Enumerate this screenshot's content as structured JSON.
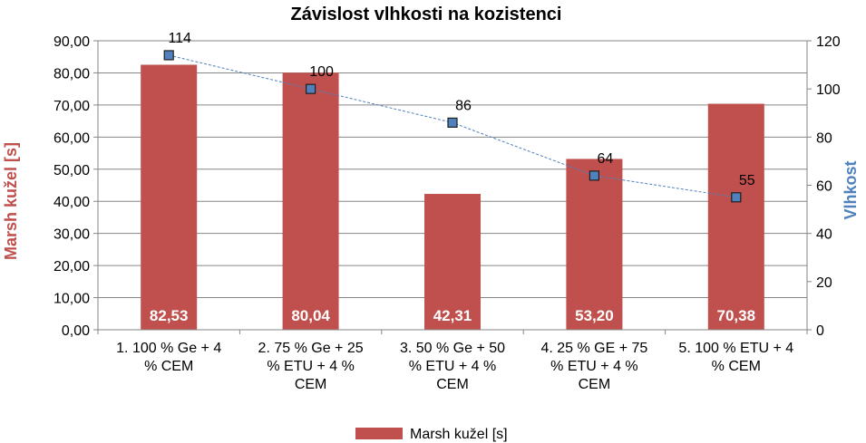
{
  "chart_data": {
    "type": "bar",
    "title": "Závislost vlhkosti na kozistenci",
    "categories": [
      [
        "1. 100 % Ge + 4",
        "% CEM"
      ],
      [
        "2. 75 %  Ge + 25",
        "% ETU + 4 %",
        "CEM"
      ],
      [
        "3. 50 % Ge + 50",
        "% ETU + 4 %",
        "CEM"
      ],
      [
        "4. 25 % GE + 75",
        "% ETU + 4 %",
        "CEM"
      ],
      [
        "5. 100 % ETU + 4",
        "% CEM"
      ]
    ],
    "series": [
      {
        "name": "Marsh kužel [s]",
        "type": "bar",
        "axis": "left",
        "values": [
          82.53,
          80.04,
          42.31,
          53.2,
          70.38
        ],
        "labels": [
          "82,53",
          "80,04",
          "42,31",
          "53,20",
          "70,38"
        ],
        "color": "#c0504d"
      },
      {
        "name": "Vlhkost",
        "type": "line",
        "axis": "right",
        "values": [
          114,
          100,
          86,
          64,
          55
        ],
        "labels": [
          "114",
          "100",
          "86",
          "64",
          "55"
        ],
        "color": "#4f81bd",
        "marker_color": "#4f81bd"
      }
    ],
    "ylabel": "Marsh kužel [s]",
    "ylabel_color": "#c0504d",
    "ylim": [
      0,
      90
    ],
    "yticks": [
      "0,00",
      "10,00",
      "20,00",
      "30,00",
      "40,00",
      "50,00",
      "60,00",
      "70,00",
      "80,00",
      "90,00"
    ],
    "y2label": "Vlhkost",
    "y2label_color": "#4f81bd",
    "y2lim": [
      0,
      120
    ],
    "y2ticks": [
      "0",
      "20",
      "40",
      "60",
      "80",
      "100",
      "120"
    ],
    "grid": true,
    "legend": {
      "position": "bottom",
      "entries": [
        "Marsh kužel [s]"
      ]
    }
  }
}
